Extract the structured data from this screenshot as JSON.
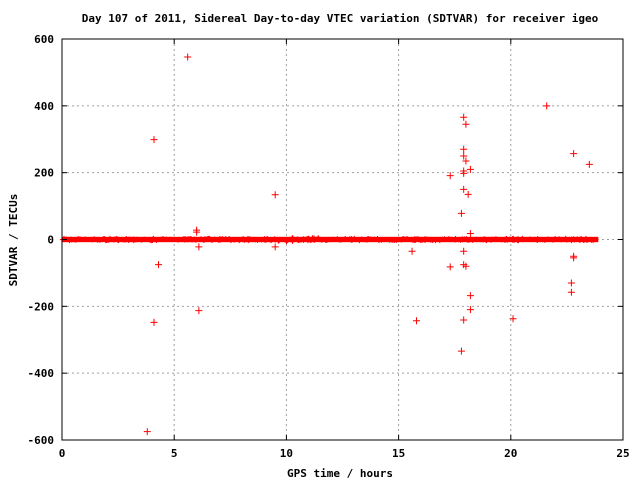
{
  "chart_data": {
    "type": "scatter",
    "title": "Day 107 of 2011, Sidereal Day-to-day VTEC variation (SDTVAR) for receiver igeo",
    "xlabel": "GPS time / hours",
    "ylabel": "SDTVAR / TECUs",
    "xlim": [
      0,
      25
    ],
    "ylim": [
      -600,
      600
    ],
    "xticks": [
      0,
      5,
      10,
      15,
      20,
      25
    ],
    "yticks": [
      -600,
      -400,
      -200,
      0,
      200,
      400,
      600
    ],
    "grid": true,
    "marker": "+",
    "color": "#ff0000",
    "band": {
      "description": "dense cluster of points near zero",
      "x_range": [
        0,
        23.9
      ],
      "y_range": [
        -8,
        8
      ]
    },
    "points": [
      [
        5.6,
        546
      ],
      [
        4.1,
        299
      ],
      [
        9.5,
        134
      ],
      [
        6.0,
        28
      ],
      [
        6.0,
        22
      ],
      [
        6.1,
        -22
      ],
      [
        4.3,
        -75
      ],
      [
        4.1,
        -248
      ],
      [
        6.1,
        -213
      ],
      [
        3.8,
        -575
      ],
      [
        9.5,
        -22
      ],
      [
        17.9,
        366
      ],
      [
        18.0,
        345
      ],
      [
        17.9,
        270
      ],
      [
        17.9,
        250
      ],
      [
        18.0,
        235
      ],
      [
        18.2,
        210
      ],
      [
        17.9,
        205
      ],
      [
        17.9,
        198
      ],
      [
        17.3,
        191
      ],
      [
        17.9,
        150
      ],
      [
        18.1,
        135
      ],
      [
        17.8,
        78
      ],
      [
        18.2,
        18
      ],
      [
        17.9,
        -35
      ],
      [
        17.9,
        -75
      ],
      [
        18.0,
        -80
      ],
      [
        17.3,
        -82
      ],
      [
        15.6,
        -35
      ],
      [
        15.8,
        -243
      ],
      [
        18.2,
        -168
      ],
      [
        18.2,
        -210
      ],
      [
        17.9,
        -241
      ],
      [
        17.8,
        -334
      ],
      [
        20.1,
        -237
      ],
      [
        21.6,
        400
      ],
      [
        22.8,
        257
      ],
      [
        23.5,
        225
      ],
      [
        22.8,
        -50
      ],
      [
        22.8,
        -55
      ],
      [
        22.7,
        -130
      ],
      [
        22.7,
        -158
      ]
    ]
  }
}
